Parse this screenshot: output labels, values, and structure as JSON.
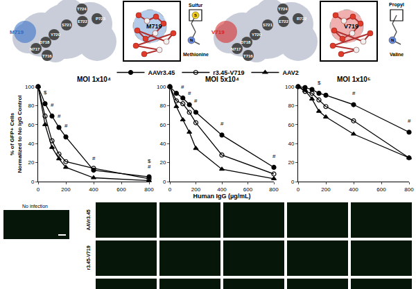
{
  "structure_panels": [
    {
      "residue": "M719",
      "color": "#2b6cc4",
      "labels": [
        "T724",
        "P723",
        "E722",
        "S721",
        "Y720",
        "D718",
        "N717",
        "T716"
      ],
      "atoms": [
        "S",
        "N"
      ],
      "group": "Sulfur",
      "molecule": "Methionine"
    },
    {
      "residue": "V719",
      "color": "#d62020",
      "labels": [
        "T724",
        "R722",
        "E722",
        "S721",
        "Y720",
        "D718",
        "N717",
        "T716"
      ],
      "atoms": [
        "N"
      ],
      "group": "Propyl",
      "molecule": "Valine"
    }
  ],
  "chart_data": [
    {
      "type": "line",
      "title": "MOI 1x10⁴",
      "legend": "top",
      "grid": false,
      "ylabel": [
        "% of GFP+ Cells",
        "Normalized to No IgG Control"
      ],
      "x": [
        0,
        50,
        100,
        150,
        200,
        400,
        800
      ],
      "xlim": [
        0,
        800
      ],
      "xticks": [
        0,
        200,
        400,
        600,
        800
      ],
      "ylim": [
        0,
        100
      ],
      "yticks": [
        0,
        20,
        40,
        60,
        80,
        100
      ],
      "series": [
        {
          "name": "AAVr3.45",
          "color": "#000000",
          "marker": "circle",
          "values": [
            100,
            82,
            69,
            57,
            47,
            12,
            5
          ]
        },
        {
          "name": "r3.45-V719",
          "color": "#000000",
          "marker": "circle-open",
          "values": [
            100,
            69,
            43,
            29,
            21,
            14,
            3
          ]
        },
        {
          "name": "AAV2",
          "color": "#000000",
          "marker": "triangle-up",
          "values": [
            100,
            60,
            36,
            24,
            15,
            4,
            1
          ]
        }
      ],
      "annotations": [
        {
          "text": "$",
          "x": 50,
          "y": 89
        },
        {
          "text": "#",
          "x": 100,
          "y": 76
        },
        {
          "text": "#",
          "x": 150,
          "y": 64
        },
        {
          "text": "#",
          "x": 200,
          "y": 54
        },
        {
          "text": "#",
          "x": 400,
          "y": 20
        },
        {
          "text": "$",
          "x": 800,
          "y": 17
        },
        {
          "text": "#",
          "x": 800,
          "y": 11
        }
      ]
    },
    {
      "type": "line",
      "title": "MOI 5x10⁴",
      "grid": false,
      "xlabel": "Human IgG (µg/mL)",
      "x": [
        0,
        50,
        100,
        150,
        200,
        400,
        800
      ],
      "xlim": [
        0,
        800
      ],
      "xticks": [
        0,
        200,
        400,
        600,
        800
      ],
      "ylim": [
        0,
        100
      ],
      "yticks": [
        0,
        20,
        40,
        60,
        80,
        100
      ],
      "series": [
        {
          "name": "AAVr3.45",
          "color": "#000000",
          "marker": "circle",
          "values": [
            100,
            93,
            88,
            81,
            73,
            49,
            15
          ]
        },
        {
          "name": "r3.45-V719",
          "color": "#000000",
          "marker": "circle-open",
          "values": [
            100,
            85,
            82,
            73,
            62,
            28,
            8
          ]
        },
        {
          "name": "AAV2",
          "color": "#000000",
          "marker": "triangle-up",
          "values": [
            100,
            79,
            65,
            52,
            35,
            13,
            3
          ]
        }
      ],
      "annotations": [
        {
          "text": "#",
          "x": 100,
          "y": 95
        },
        {
          "text": "#",
          "x": 150,
          "y": 88
        },
        {
          "text": "#",
          "x": 200,
          "y": 80
        },
        {
          "text": "#",
          "x": 400,
          "y": 56
        },
        {
          "text": "#",
          "x": 800,
          "y": 22
        }
      ]
    },
    {
      "type": "line",
      "title": "MOI 1x10⁵",
      "grid": false,
      "x": [
        0,
        50,
        100,
        150,
        200,
        400,
        800
      ],
      "xlim": [
        0,
        800
      ],
      "xticks": [
        0,
        200,
        400,
        600,
        800
      ],
      "ylim": [
        0,
        100
      ],
      "yticks": [
        0,
        20,
        40,
        60,
        80,
        100
      ],
      "series": [
        {
          "name": "AAVr3.45",
          "color": "#000000",
          "marker": "circle",
          "values": [
            100,
            99,
            97,
            93,
            91,
            81,
            52
          ]
        },
        {
          "name": "r3.45-V719",
          "color": "#000000",
          "marker": "circle-open",
          "values": [
            100,
            95,
            93,
            86,
            79,
            64,
            25
          ]
        },
        {
          "name": "AAV2",
          "color": "#000000",
          "marker": "triangle-up",
          "values": [
            100,
            96,
            87,
            74,
            68,
            50,
            25
          ]
        }
      ],
      "annotations": [
        {
          "text": "$",
          "x": 150,
          "y": 99
        },
        {
          "text": "#",
          "x": 400,
          "y": 88
        },
        {
          "text": "#",
          "x": 800,
          "y": 59
        }
      ]
    }
  ],
  "microscopy": {
    "control_label": "No infection",
    "rows": [
      "AAVr3.45",
      "r3.45-V719"
    ]
  }
}
